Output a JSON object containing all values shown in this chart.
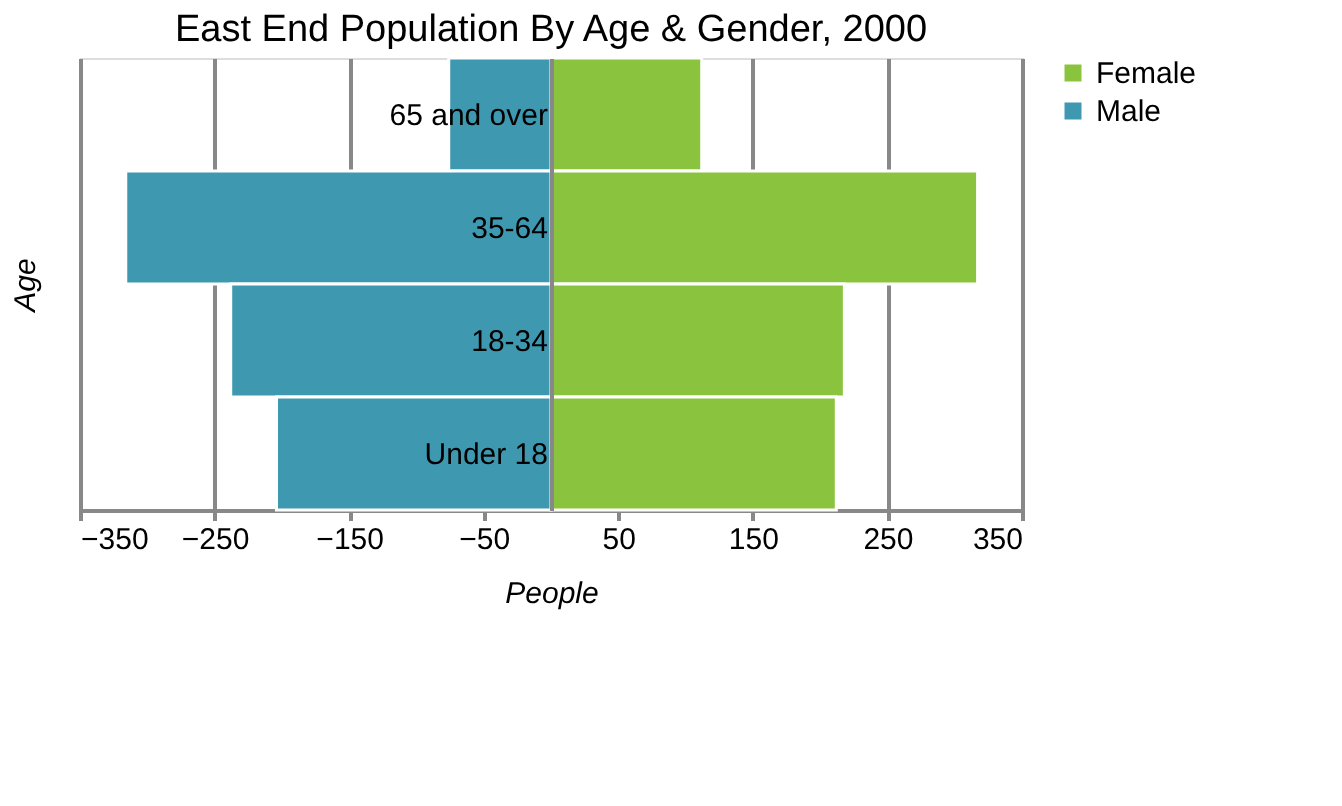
{
  "chart_data": {
    "type": "bar",
    "orientation": "horizontal",
    "stacked": true,
    "title": "East End Population By Age & Gender, 2000",
    "xlabel": "People",
    "ylabel": "Age",
    "categories": [
      "65 and over",
      "35-64",
      "18-34",
      "Under 18"
    ],
    "series": [
      {
        "name": "Female",
        "color": "#8ac43f",
        "values": [
          112,
          317,
          218,
          212
        ]
      },
      {
        "name": "Male",
        "color": "#3e98b0",
        "values": [
          -76,
          -316,
          -238,
          -204
        ]
      }
    ],
    "xlim": [
      -350,
      350
    ],
    "xticks": [
      -350,
      -250,
      -150,
      -50,
      50,
      150,
      250,
      350
    ],
    "grid": "x",
    "legend": "right"
  }
}
